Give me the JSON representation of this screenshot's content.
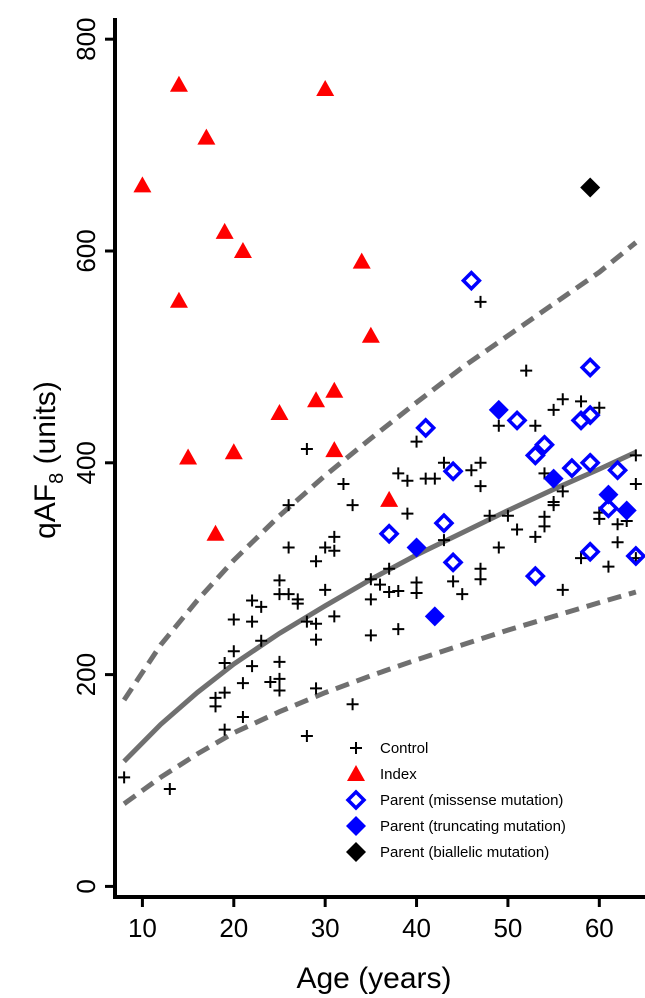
{
  "chart_data": {
    "type": "scatter",
    "title": "",
    "xlabel": "Age (years)",
    "ylabel_main": "qAF",
    "ylabel_sub": "8",
    "ylabel_unit": " (units)",
    "xlim": [
      7,
      65
    ],
    "ylim": [
      -10,
      820
    ],
    "xticks": [
      10,
      20,
      30,
      40,
      50,
      60
    ],
    "yticks": [
      0,
      200,
      400,
      600,
      800
    ],
    "grid": false,
    "legend_position": "bottom-right",
    "series": [
      {
        "name": "Control",
        "marker": "plus",
        "color": "#000000",
        "points": [
          [
            8,
            103
          ],
          [
            13,
            92
          ],
          [
            18,
            170
          ],
          [
            18,
            178
          ],
          [
            19,
            148
          ],
          [
            19,
            183
          ],
          [
            19,
            211
          ],
          [
            20,
            222
          ],
          [
            20,
            252
          ],
          [
            21,
            192
          ],
          [
            21,
            160
          ],
          [
            22,
            208
          ],
          [
            22,
            250
          ],
          [
            22,
            270
          ],
          [
            23,
            232
          ],
          [
            23,
            264
          ],
          [
            24,
            193
          ],
          [
            25,
            212
          ],
          [
            25,
            185
          ],
          [
            25,
            196
          ],
          [
            25,
            289
          ],
          [
            25,
            276
          ],
          [
            26,
            276
          ],
          [
            26,
            360
          ],
          [
            26,
            320
          ],
          [
            27,
            271
          ],
          [
            27,
            267
          ],
          [
            28,
            142
          ],
          [
            28,
            413
          ],
          [
            28,
            250
          ],
          [
            29,
            187
          ],
          [
            29,
            248
          ],
          [
            29,
            233
          ],
          [
            29,
            307
          ],
          [
            30,
            320
          ],
          [
            30,
            280
          ],
          [
            31,
            255
          ],
          [
            31,
            317
          ],
          [
            31,
            330
          ],
          [
            32,
            380
          ],
          [
            33,
            172
          ],
          [
            33,
            360
          ],
          [
            35,
            237
          ],
          [
            35,
            271
          ],
          [
            35,
            290
          ],
          [
            36,
            285
          ],
          [
            37,
            300
          ],
          [
            37,
            278
          ],
          [
            38,
            243
          ],
          [
            38,
            279
          ],
          [
            38,
            390
          ],
          [
            39,
            352
          ],
          [
            39,
            383
          ],
          [
            40,
            420
          ],
          [
            40,
            287
          ],
          [
            40,
            277
          ],
          [
            41,
            385
          ],
          [
            42,
            385
          ],
          [
            43,
            400
          ],
          [
            43,
            327
          ],
          [
            44,
            288
          ],
          [
            45,
            276
          ],
          [
            46,
            393
          ],
          [
            47,
            552
          ],
          [
            47,
            378
          ],
          [
            47,
            400
          ],
          [
            47,
            300
          ],
          [
            47,
            290
          ],
          [
            48,
            350
          ],
          [
            49,
            435
          ],
          [
            49,
            320
          ],
          [
            50,
            350
          ],
          [
            51,
            337
          ],
          [
            52,
            487
          ],
          [
            53,
            435
          ],
          [
            53,
            330
          ],
          [
            54,
            340
          ],
          [
            54,
            349
          ],
          [
            54,
            390
          ],
          [
            55,
            360
          ],
          [
            55,
            363
          ],
          [
            55,
            450
          ],
          [
            56,
            460
          ],
          [
            56,
            373
          ],
          [
            56,
            280
          ],
          [
            58,
            458
          ],
          [
            58,
            310
          ],
          [
            60,
            452
          ],
          [
            60,
            353
          ],
          [
            60,
            347
          ],
          [
            61,
            302
          ],
          [
            62,
            325
          ],
          [
            62,
            342
          ],
          [
            63,
            345
          ],
          [
            64,
            310
          ],
          [
            64,
            380
          ],
          [
            64,
            407
          ]
        ]
      },
      {
        "name": "Index",
        "marker": "triangle",
        "color": "#ff0000",
        "points": [
          [
            10,
            662
          ],
          [
            14,
            757
          ],
          [
            14,
            553
          ],
          [
            15,
            405
          ],
          [
            17,
            707
          ],
          [
            18,
            333
          ],
          [
            19,
            618
          ],
          [
            20,
            410
          ],
          [
            21,
            600
          ],
          [
            25,
            447
          ],
          [
            29,
            459
          ],
          [
            30,
            753
          ],
          [
            31,
            468
          ],
          [
            31,
            412
          ],
          [
            34,
            590
          ],
          [
            35,
            520
          ],
          [
            37,
            365
          ]
        ]
      },
      {
        "name": "Parent (missense mutation)",
        "marker": "diamond-open",
        "color": "#0000ff",
        "points": [
          [
            37,
            333
          ],
          [
            41,
            433
          ],
          [
            43,
            343
          ],
          [
            44,
            392
          ],
          [
            44,
            306
          ],
          [
            46,
            572
          ],
          [
            51,
            440
          ],
          [
            53,
            407
          ],
          [
            53,
            293
          ],
          [
            54,
            417
          ],
          [
            57,
            395
          ],
          [
            58,
            440
          ],
          [
            59,
            490
          ],
          [
            59,
            445
          ],
          [
            59,
            400
          ],
          [
            59,
            316
          ],
          [
            61,
            357
          ],
          [
            62,
            393
          ],
          [
            64,
            312
          ]
        ]
      },
      {
        "name": "Parent (truncating mutation)",
        "marker": "diamond",
        "color": "#0000ff",
        "points": [
          [
            40,
            320
          ],
          [
            42,
            255
          ],
          [
            49,
            450
          ],
          [
            55,
            385
          ],
          [
            61,
            370
          ],
          [
            63,
            355
          ]
        ]
      },
      {
        "name": "Parent (biallelic mutation)",
        "marker": "diamond",
        "color": "#000000",
        "points": [
          [
            59,
            660
          ]
        ]
      }
    ],
    "curves": {
      "color": "#707070",
      "mean": [
        [
          8,
          118
        ],
        [
          12,
          153
        ],
        [
          16,
          183
        ],
        [
          20,
          210
        ],
        [
          25,
          239
        ],
        [
          30,
          265
        ],
        [
          35,
          290
        ],
        [
          40,
          313
        ],
        [
          45,
          334
        ],
        [
          50,
          355
        ],
        [
          55,
          375
        ],
        [
          60,
          394
        ],
        [
          64,
          410
        ]
      ],
      "upper": [
        [
          8,
          176
        ],
        [
          12,
          228
        ],
        [
          16,
          270
        ],
        [
          20,
          308
        ],
        [
          25,
          350
        ],
        [
          30,
          388
        ],
        [
          35,
          423
        ],
        [
          40,
          457
        ],
        [
          45,
          490
        ],
        [
          50,
          520
        ],
        [
          55,
          550
        ],
        [
          60,
          580
        ],
        [
          64,
          608
        ]
      ],
      "lower": [
        [
          8,
          78
        ],
        [
          12,
          103
        ],
        [
          16,
          125
        ],
        [
          20,
          145
        ],
        [
          25,
          165
        ],
        [
          30,
          183
        ],
        [
          35,
          199
        ],
        [
          40,
          214
        ],
        [
          45,
          228
        ],
        [
          50,
          242
        ],
        [
          55,
          255
        ],
        [
          60,
          268
        ],
        [
          64,
          278
        ]
      ]
    }
  }
}
